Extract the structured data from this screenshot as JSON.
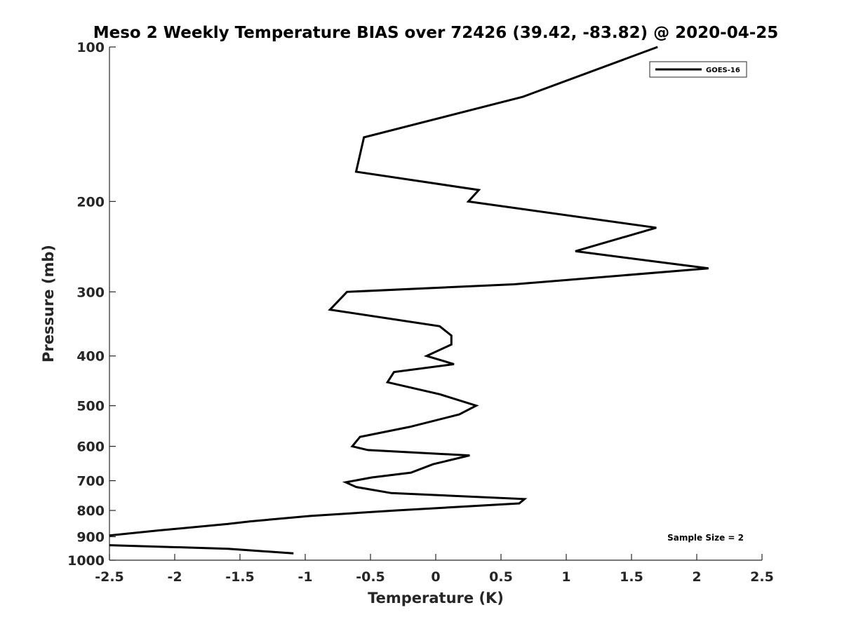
{
  "chart_data": {
    "type": "line",
    "title": "Meso 2 Weekly Temperature BIAS over 72426 (39.42, -83.82) @ 2020-04-25",
    "xlabel": "Temperature (K)",
    "ylabel": "Pressure (mb)",
    "xlim": [
      -2.5,
      2.5
    ],
    "ylim": [
      100,
      1000
    ],
    "y_scale": "log",
    "y_reversed": true,
    "x_ticks": [
      -2.5,
      -2,
      -1.5,
      -1,
      -0.5,
      0,
      0.5,
      1,
      1.5,
      2,
      2.5
    ],
    "x_tick_labels": [
      "-2.5",
      "-2",
      "-1.5",
      "-1",
      "-0.5",
      "0",
      "0.5",
      "1",
      "1.5",
      "2",
      "2.5"
    ],
    "y_ticks": [
      100,
      200,
      300,
      400,
      500,
      600,
      700,
      800,
      900,
      1000
    ],
    "y_tick_labels": [
      "100",
      "200",
      "300",
      "400",
      "500",
      "600",
      "700",
      "800",
      "900",
      "1000"
    ],
    "grid": false,
    "legend_position": "top-right",
    "line_color": "#000000",
    "annotation": "Sample Size = 2",
    "series": [
      {
        "name": "GOES-16",
        "points": [
          [
            1.7,
            100
          ],
          [
            0.67,
            125
          ],
          [
            -0.55,
            150
          ],
          [
            -0.61,
            175
          ],
          [
            0.33,
            190
          ],
          [
            0.25,
            200
          ],
          [
            1.69,
            225
          ],
          [
            1.07,
            250
          ],
          [
            2.09,
            270
          ],
          [
            0.6,
            290
          ],
          [
            -0.68,
            300
          ],
          [
            -0.81,
            325
          ],
          [
            0.03,
            350
          ],
          [
            0.12,
            365
          ],
          [
            0.12,
            380
          ],
          [
            -0.07,
            400
          ],
          [
            0.14,
            415
          ],
          [
            -0.32,
            430
          ],
          [
            -0.37,
            450
          ],
          [
            0.03,
            475
          ],
          [
            0.31,
            500
          ],
          [
            0.18,
            520
          ],
          [
            -0.2,
            550
          ],
          [
            -0.58,
            575
          ],
          [
            -0.64,
            600
          ],
          [
            -0.52,
            610
          ],
          [
            0.26,
            625
          ],
          [
            -0.02,
            650
          ],
          [
            -0.19,
            675
          ],
          [
            -0.49,
            690
          ],
          [
            -0.69,
            705
          ],
          [
            -0.61,
            720
          ],
          [
            -0.34,
            740
          ],
          [
            0.68,
            760
          ],
          [
            0.64,
            775
          ],
          [
            -0.31,
            800
          ],
          [
            -0.96,
            820
          ],
          [
            -1.42,
            840
          ],
          [
            -1.59,
            850
          ],
          [
            -2.12,
            875
          ],
          [
            -2.5,
            895
          ],
          [
            null,
            null
          ],
          [
            -2.5,
            935
          ],
          [
            -1.59,
            950
          ],
          [
            -1.09,
            970
          ]
        ]
      }
    ]
  }
}
